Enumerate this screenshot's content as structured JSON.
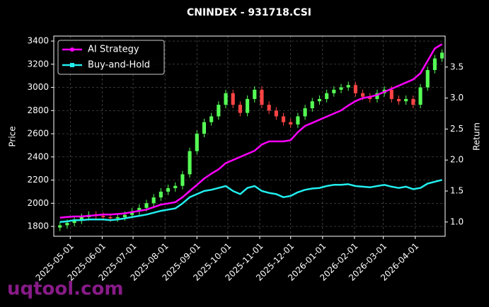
{
  "chart_data": {
    "type": "candlestick",
    "title": "CNINDEX - 931718.CSI",
    "y_label": "Price",
    "y2_label": "Return",
    "watermark": "uqtool.com",
    "x": [
      "2025-04-21",
      "2025-04-28",
      "2025-05-05",
      "2025-05-12",
      "2025-05-19",
      "2025-05-26",
      "2025-06-02",
      "2025-06-09",
      "2025-06-16",
      "2025-06-23",
      "2025-06-30",
      "2025-07-07",
      "2025-07-14",
      "2025-07-21",
      "2025-07-28",
      "2025-08-04",
      "2025-08-11",
      "2025-08-18",
      "2025-08-25",
      "2025-09-01",
      "2025-09-08",
      "2025-09-15",
      "2025-09-22",
      "2025-09-29",
      "2025-10-06",
      "2025-10-13",
      "2025-10-20",
      "2025-10-27",
      "2025-11-03",
      "2025-11-10",
      "2025-11-17",
      "2025-11-24",
      "2025-12-01",
      "2025-12-08",
      "2025-12-15",
      "2025-12-22",
      "2025-12-29",
      "2026-01-05",
      "2026-01-12",
      "2026-01-19",
      "2026-01-26",
      "2026-02-02",
      "2026-02-09",
      "2026-02-16",
      "2026-02-23",
      "2026-03-02",
      "2026-03-09",
      "2026-03-16",
      "2026-03-23",
      "2026-03-30",
      "2026-04-06",
      "2026-04-13",
      "2026-04-20",
      "2026-04-27"
    ],
    "open": [
      1790,
      1810,
      1830,
      1850,
      1880,
      1900,
      1890,
      1880,
      1870,
      1880,
      1900,
      1930,
      1960,
      2000,
      2050,
      2100,
      2130,
      2150,
      2250,
      2450,
      2600,
      2700,
      2750,
      2850,
      2950,
      2850,
      2780,
      2900,
      2980,
      2850,
      2800,
      2750,
      2700,
      2680,
      2750,
      2820,
      2880,
      2900,
      2950,
      2980,
      3000,
      3020,
      2950,
      2920,
      2900,
      2950,
      2980,
      2900,
      2880,
      2900,
      2850,
      3000,
      3150,
      3250
    ],
    "high": [
      1840,
      1860,
      1880,
      1910,
      1930,
      1930,
      1920,
      1910,
      1910,
      1930,
      1960,
      1990,
      2030,
      2080,
      2130,
      2160,
      2180,
      2280,
      2480,
      2630,
      2730,
      2780,
      2880,
      2980,
      2980,
      2880,
      2930,
      3010,
      3010,
      2880,
      2830,
      2780,
      2730,
      2780,
      2850,
      2910,
      2930,
      2980,
      3010,
      3030,
      3050,
      3050,
      2980,
      2950,
      2980,
      3010,
      3010,
      2930,
      2930,
      2930,
      3030,
      3180,
      3280,
      3330
    ],
    "low": [
      1760,
      1780,
      1800,
      1820,
      1850,
      1860,
      1850,
      1840,
      1840,
      1850,
      1870,
      1900,
      1930,
      1970,
      2020,
      2070,
      2100,
      2120,
      2220,
      2420,
      2570,
      2670,
      2720,
      2820,
      2820,
      2750,
      2750,
      2870,
      2820,
      2770,
      2720,
      2670,
      2650,
      2650,
      2720,
      2790,
      2850,
      2870,
      2920,
      2950,
      2970,
      2920,
      2890,
      2870,
      2870,
      2920,
      2870,
      2850,
      2850,
      2820,
      2820,
      2970,
      3120,
      3220
    ],
    "close": [
      1810,
      1830,
      1850,
      1880,
      1900,
      1890,
      1880,
      1870,
      1880,
      1900,
      1930,
      1960,
      2000,
      2050,
      2100,
      2130,
      2150,
      2250,
      2450,
      2600,
      2700,
      2750,
      2850,
      2950,
      2850,
      2780,
      2900,
      2980,
      2850,
      2800,
      2750,
      2700,
      2680,
      2750,
      2820,
      2880,
      2900,
      2950,
      2980,
      3000,
      3020,
      2950,
      2920,
      2900,
      2950,
      2980,
      2900,
      2880,
      2900,
      2850,
      3000,
      3150,
      3250,
      3300
    ],
    "up_color": "#55ff55",
    "down_color": "#ff4444",
    "series": [
      {
        "name": "AI Strategy",
        "color": "#ff00ff",
        "axis": "y2",
        "values": [
          1.07,
          1.08,
          1.09,
          1.09,
          1.1,
          1.11,
          1.12,
          1.12,
          1.13,
          1.14,
          1.16,
          1.18,
          1.2,
          1.24,
          1.28,
          1.3,
          1.32,
          1.4,
          1.5,
          1.6,
          1.7,
          1.78,
          1.85,
          1.95,
          2.0,
          2.05,
          2.1,
          2.15,
          2.25,
          2.3,
          2.3,
          2.3,
          2.32,
          2.45,
          2.55,
          2.6,
          2.65,
          2.7,
          2.75,
          2.8,
          2.88,
          2.95,
          3.0,
          3.02,
          3.05,
          3.1,
          3.15,
          3.2,
          3.25,
          3.3,
          3.4,
          3.6,
          3.8,
          3.87
        ]
      },
      {
        "name": "Buy-and-Hold",
        "color": "#22eeee",
        "axis": "y2",
        "values": [
          1.0,
          1.01,
          1.03,
          1.03,
          1.04,
          1.04,
          1.04,
          1.03,
          1.04,
          1.06,
          1.08,
          1.1,
          1.12,
          1.15,
          1.18,
          1.2,
          1.22,
          1.3,
          1.4,
          1.45,
          1.5,
          1.52,
          1.55,
          1.58,
          1.5,
          1.45,
          1.55,
          1.58,
          1.5,
          1.47,
          1.45,
          1.4,
          1.42,
          1.48,
          1.52,
          1.54,
          1.55,
          1.58,
          1.6,
          1.6,
          1.61,
          1.58,
          1.57,
          1.56,
          1.58,
          1.6,
          1.57,
          1.55,
          1.57,
          1.53,
          1.55,
          1.62,
          1.65,
          1.68
        ]
      }
    ],
    "xlim": [
      "2025-04-15",
      "2026-04-30"
    ],
    "xticks": [
      "2025-05-01",
      "2025-06-01",
      "2025-07-01",
      "2025-08-01",
      "2025-09-01",
      "2025-10-01",
      "2025-11-01",
      "2025-12-01",
      "2026-01-01",
      "2026-02-01",
      "2026-03-01",
      "2026-04-01"
    ],
    "ylim": [
      1715,
      3443
    ],
    "yticks": [
      1800,
      2000,
      2200,
      2400,
      2600,
      2800,
      3000,
      3200,
      3400
    ],
    "y2lim": [
      0.77,
      4.0
    ],
    "y2ticks": [
      {
        "value": 1,
        "label": "1.0"
      },
      1.5,
      {
        "value": 2,
        "label": "2.0"
      },
      2.5,
      {
        "value": 3,
        "label": "3.0"
      },
      3.5
    ],
    "grid": true,
    "legend": "upper left"
  }
}
